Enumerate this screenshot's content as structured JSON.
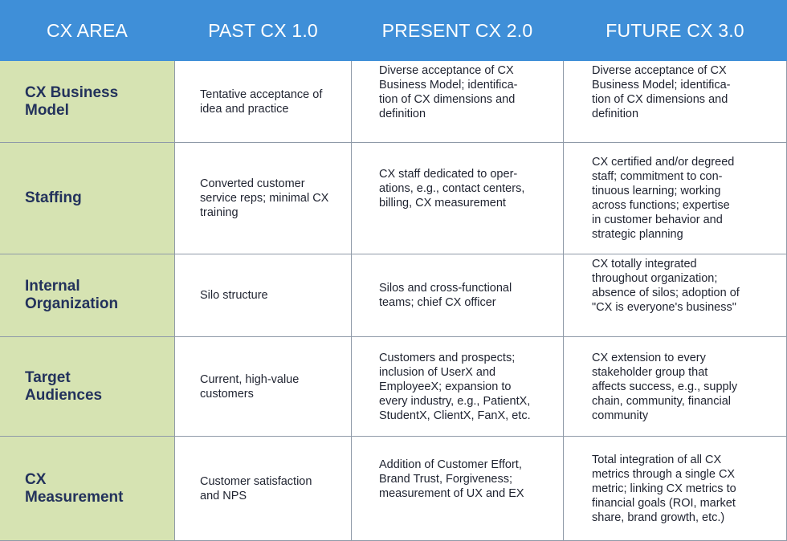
{
  "headers": [
    "CX AREA",
    "PAST CX 1.0",
    "PRESENT CX 2.0",
    "FUTURE CX 3.0"
  ],
  "rows": [
    {
      "area": "CX Business\nModel",
      "past": "Tentative acceptance of\nidea and practice",
      "present": "Diverse acceptance of CX\nBusiness Model; identifica-\ntion of CX dimensions and\ndefinition",
      "future": "Diverse acceptance of CX\nBusiness Model; identifica-\ntion of CX dimensions and\ndefinition"
    },
    {
      "area": "Staffing",
      "past": "Converted customer\nservice reps; minimal CX\ntraining",
      "present": "CX staff dedicated to oper-\nations, e.g., contact centers,\nbilling, CX measurement",
      "future": "CX certified and/or degreed\nstaff; commitment to con-\ntinuous learning; working\nacross functions; expertise\nin customer behavior and\nstrategic planning"
    },
    {
      "area": "Internal\nOrganization",
      "past": "Silo structure",
      "present": "Silos and cross-functional\nteams; chief CX officer",
      "future": "CX totally integrated\nthroughout organization;\nabsence of silos; adoption of\n\"CX is everyone's business\""
    },
    {
      "area": "Target\nAudiences",
      "past": "Current, high-value\ncustomers",
      "present": "Customers and prospects;\ninclusion of UserX and\nEmployeeX; expansion to\nevery industry, e.g., PatientX,\nStudentX, ClientX, FanX, etc.",
      "future": "CX extension to every\nstakeholder group that\naffects success, e.g., supply\nchain, community, financial\ncommunity"
    },
    {
      "area": "CX\nMeasurement",
      "past": "Customer satisfaction\nand NPS",
      "present": "Addition of Customer Effort,\nBrand Trust, Forgiveness;\nmeasurement of UX and EX",
      "future": "Total integration of all CX\nmetrics through a single CX\nmetric; linking CX metrics to\nfinancial goals (ROI, market\nshare, brand growth, etc.)"
    }
  ]
}
